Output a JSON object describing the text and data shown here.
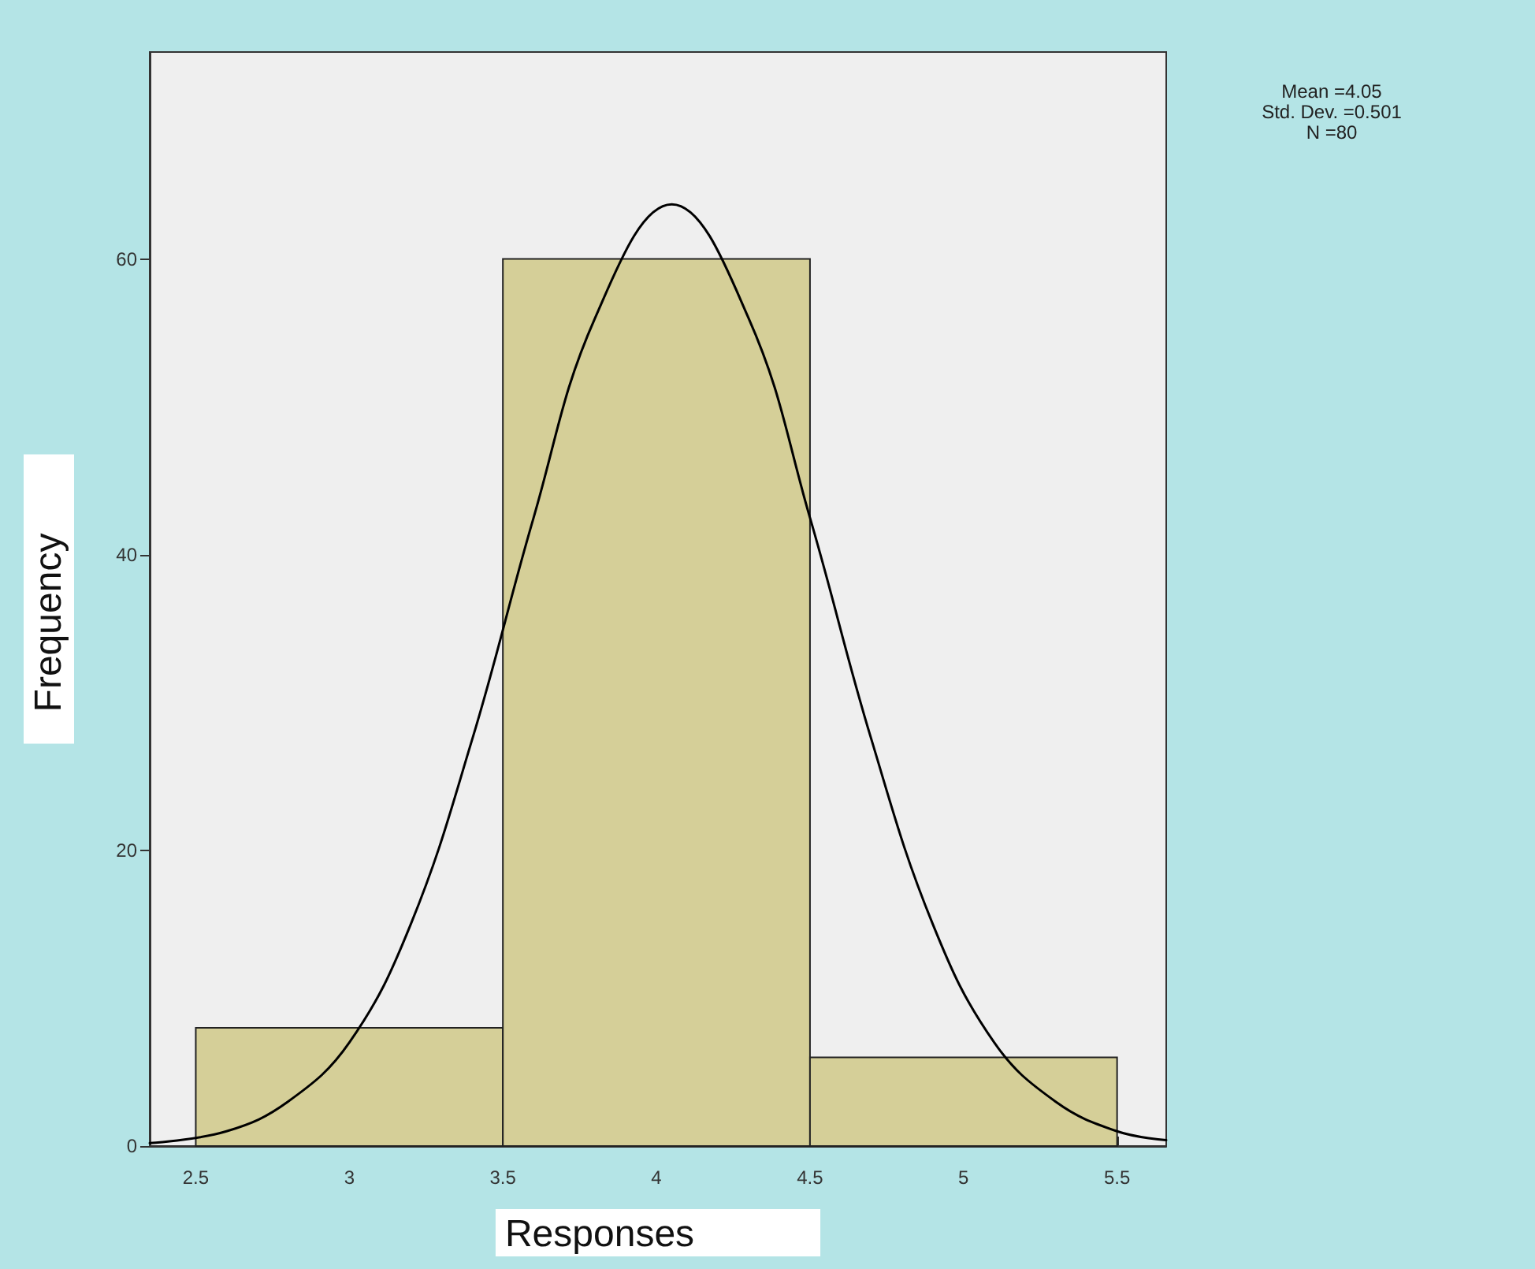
{
  "chart_data": {
    "type": "histogram",
    "xlabel": "Responses",
    "ylabel": "Frequency",
    "annotations": [
      "Mean =4.05",
      "Std. Dev. =0.501",
      "N =80"
    ],
    "xlim": [
      2.35,
      5.66
    ],
    "xticks": [
      2.5,
      3,
      3.5,
      4,
      4.5,
      5,
      5.5
    ],
    "ylim": [
      0,
      74
    ],
    "yticks": [
      0,
      20,
      40,
      60
    ],
    "grid": false,
    "series": [
      {
        "bins": [
          2.5,
          3.5,
          4.5,
          5.5
        ],
        "values": [
          8,
          60,
          6
        ],
        "color": "#d5cf98"
      },
      {
        "type": "line",
        "marker": "none",
        "line_style": "solid",
        "color": "#000000",
        "x": [
          2.35,
          2.6,
          2.8,
          3.0,
          3.2,
          3.4,
          3.6,
          3.8,
          4.05,
          4.3,
          4.5,
          4.7,
          4.9,
          5.1,
          5.3,
          5.5,
          5.66
        ],
        "values": [
          0.2,
          1,
          3,
          7,
          15,
          27.5,
          42.5,
          56,
          63.7,
          56,
          42.5,
          27.5,
          15,
          7,
          3,
          1,
          0.4
        ]
      }
    ]
  }
}
